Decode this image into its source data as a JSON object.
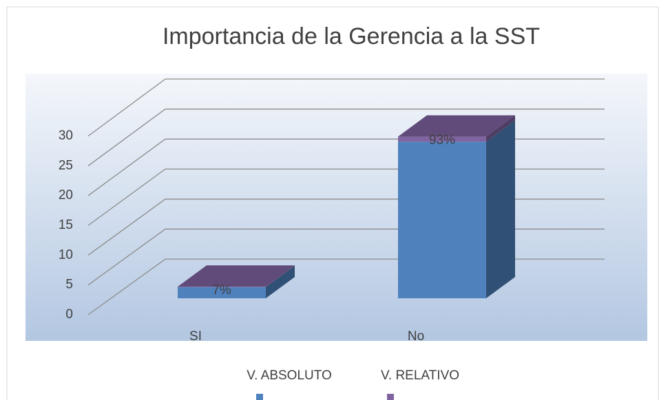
{
  "chart_data": {
    "type": "bar3d-stacked",
    "title": "Importancia de la Gerencia a la SST",
    "categories": [
      "SI",
      "No"
    ],
    "series": [
      {
        "name": "V. ABSOLUTO",
        "color": "#4f81bd",
        "values": [
          2,
          28
        ]
      },
      {
        "name": "V. RELATIVO",
        "color": "#8064a2",
        "values": [
          0.07,
          0.93
        ],
        "value_labels": [
          "7%",
          "93%"
        ]
      }
    ],
    "ylim": [
      0,
      30
    ],
    "yticks": [
      0,
      5,
      10,
      15,
      20,
      25,
      30
    ],
    "grid": true,
    "legend": "bottom"
  }
}
